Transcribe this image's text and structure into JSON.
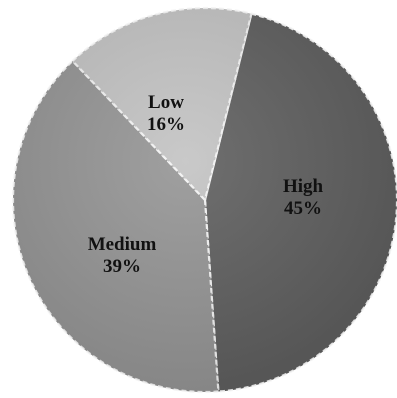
{
  "chart_data": {
    "type": "pie",
    "title": "",
    "legend": "none",
    "start_angle_deg": 14,
    "direction": "clockwise",
    "slices": [
      {
        "name": "High",
        "value": 45,
        "label": "45%",
        "color": "#5f5f5f"
      },
      {
        "name": "Medium",
        "value": 39,
        "label": "39%",
        "color": "#959595"
      },
      {
        "name": "Low",
        "value": 16,
        "label": "16%",
        "color": "#c3c3c3"
      }
    ]
  }
}
